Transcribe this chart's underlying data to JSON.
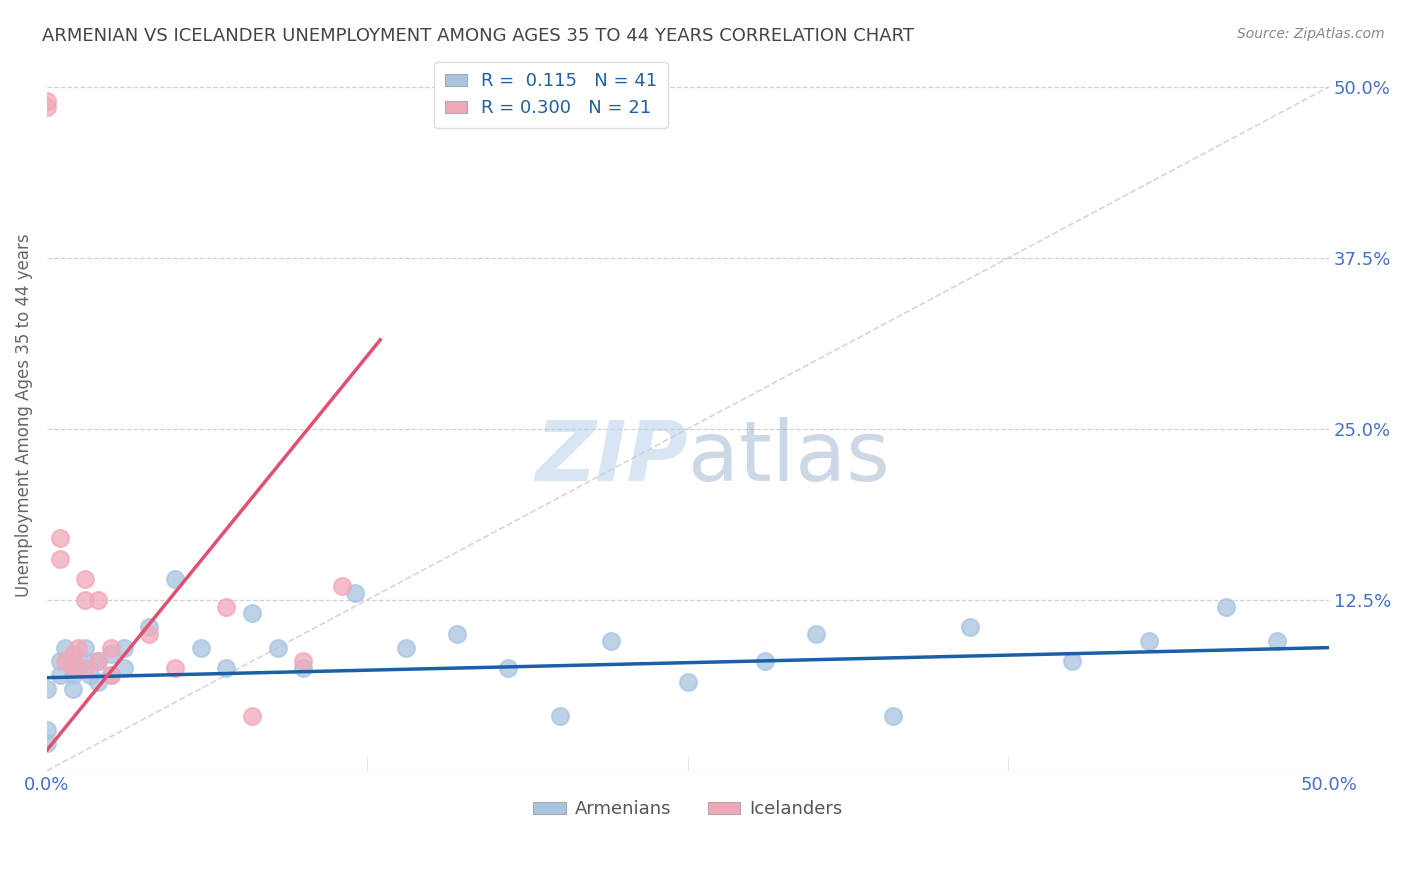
{
  "title": "ARMENIAN VS ICELANDER UNEMPLOYMENT AMONG AGES 35 TO 44 YEARS CORRELATION CHART",
  "source": "Source: ZipAtlas.com",
  "ylabel": "Unemployment Among Ages 35 to 44 years",
  "xlim": [
    0.0,
    0.5
  ],
  "ylim": [
    0.0,
    0.52
  ],
  "grid_color": "#cccccc",
  "background_color": "#ffffff",
  "legend_R_armenian": "0.115",
  "legend_N_armenian": "41",
  "legend_R_icelander": "0.300",
  "legend_N_icelander": "21",
  "armenian_color": "#a8c4e0",
  "icelander_color": "#f0a8b8",
  "armenian_line_color": "#1a5fa8",
  "icelander_line_color": "#e05070",
  "title_color": "#444444",
  "axis_label_color": "#666666",
  "tick_label_color": "#4472c4",
  "source_color": "#888888",
  "ytick_positions": [
    0.5,
    0.375,
    0.25,
    0.125
  ],
  "ytick_labels": [
    "50.0%",
    "37.5%",
    "25.0%",
    "12.5%"
  ],
  "armenian_x": [
    0.0,
    0.0,
    0.0,
    0.005,
    0.005,
    0.007,
    0.01,
    0.01,
    0.01,
    0.012,
    0.015,
    0.015,
    0.017,
    0.02,
    0.02,
    0.025,
    0.025,
    0.03,
    0.03,
    0.04,
    0.05,
    0.06,
    0.07,
    0.08,
    0.09,
    0.1,
    0.12,
    0.14,
    0.16,
    0.18,
    0.2,
    0.22,
    0.25,
    0.28,
    0.3,
    0.33,
    0.36,
    0.4,
    0.43,
    0.46,
    0.48
  ],
  "armenian_y": [
    0.02,
    0.03,
    0.06,
    0.07,
    0.08,
    0.09,
    0.08,
    0.07,
    0.06,
    0.075,
    0.08,
    0.09,
    0.07,
    0.08,
    0.065,
    0.085,
    0.07,
    0.09,
    0.075,
    0.105,
    0.14,
    0.09,
    0.075,
    0.115,
    0.09,
    0.075,
    0.13,
    0.09,
    0.1,
    0.075,
    0.04,
    0.095,
    0.065,
    0.08,
    0.1,
    0.04,
    0.105,
    0.08,
    0.095,
    0.12,
    0.095
  ],
  "icelander_x": [
    0.0,
    0.0,
    0.005,
    0.005,
    0.007,
    0.01,
    0.01,
    0.012,
    0.015,
    0.015,
    0.015,
    0.02,
    0.02,
    0.025,
    0.025,
    0.04,
    0.05,
    0.07,
    0.08,
    0.1,
    0.115
  ],
  "icelander_y": [
    0.49,
    0.485,
    0.155,
    0.17,
    0.08,
    0.075,
    0.085,
    0.09,
    0.125,
    0.14,
    0.075,
    0.08,
    0.125,
    0.07,
    0.09,
    0.1,
    0.075,
    0.12,
    0.04,
    0.08,
    0.135
  ],
  "ice_line_x": [
    0.0,
    0.13
  ],
  "ice_line_y_start": 0.015,
  "ice_line_y_end": 0.315,
  "arm_line_x": [
    0.0,
    0.5
  ],
  "arm_line_y_start": 0.068,
  "arm_line_y_end": 0.09
}
